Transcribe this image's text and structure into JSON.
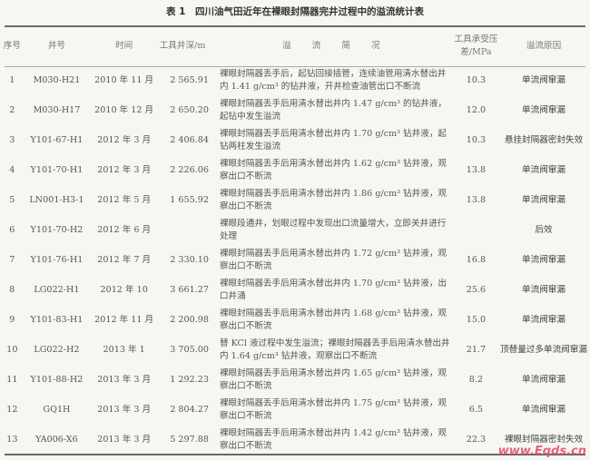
{
  "title": "表 1　四川油气田近年在裸眼封隔器完井过程中的溢流统计表",
  "headers": [
    "序号",
    "井号",
    "时间",
    "工具井深/m",
    "溢 流 简 况",
    "工具承受压差/MPa",
    "溢流原因"
  ],
  "rows": [
    {
      "no": "1",
      "well": "M030-H21",
      "time": "2010 年 11 月",
      "depth": "2 565.91",
      "desc": "裸眼封隔器丢手后，起钻回接插管，连续油管用清水替出井内 1.41 g/cm³ 的钻井液，开井检查油管出口不断流",
      "pressure": "10.3",
      "cause": "单流阀窜漏"
    },
    {
      "no": "2",
      "well": "M030-H17",
      "time": "2010 年 12 月",
      "depth": "2 650.20",
      "desc": "裸眼封隔器丢手后用清水替出井内 1.47 g/cm³ 的钻井液，起钻中发生溢流",
      "pressure": "12.0",
      "cause": "单流阀窜漏"
    },
    {
      "no": "3",
      "well": "Y101-67-H1",
      "time": "2012 年 3 月",
      "depth": "2 406.84",
      "desc": "裸眼封隔器丢手后用清水替出井内 1.70 g/cm³ 钻井液，起钻两柱发生溢流",
      "pressure": "10.3",
      "cause": "悬挂封隔器密封失效"
    },
    {
      "no": "4",
      "well": "Y101-70-H1",
      "time": "2012 年 3 月",
      "depth": "2 226.06",
      "desc": "裸眼封隔器丢手后用清水替出井内 1.62 g/cm³ 钻井液，观察出口不断流",
      "pressure": "13.8",
      "cause": "单流阀窜漏"
    },
    {
      "no": "5",
      "well": "LN001-H3-1",
      "time": "2012 年 5 月",
      "depth": "1 655.92",
      "desc": "裸眼封隔器丢手后用清水替出井内 1.86 g/cm³ 钻井液，观察出口不断流",
      "pressure": "13.8",
      "cause": "单流阀窜漏"
    },
    {
      "no": "6",
      "well": "Y101-70-H2",
      "time": "2012 年 6 月",
      "depth": "",
      "desc": "裸眼段通井，划眼过程中发现出口流量增大，立即关井进行处理",
      "pressure": "",
      "cause": "后效"
    },
    {
      "no": "7",
      "well": "Y101-76-H1",
      "time": "2012 年 7 月",
      "depth": "2 330.10",
      "desc": "裸眼封隔器丢手后用清水替出井内 1.72 g/cm³ 钻井液，观察出口不断流",
      "pressure": "16.8",
      "cause": "单流阀窜漏"
    },
    {
      "no": "8",
      "well": "LG022-H1",
      "time": "2012 年 10",
      "depth": "3 661.27",
      "desc": "裸眼封隔器丢手后用清水替出井内 1.70 g/cm³ 钻井液，出口井涌",
      "pressure": "25.6",
      "cause": "单流阀窜漏"
    },
    {
      "no": "9",
      "well": "Y101-83-H1",
      "time": "2012 年 11 月",
      "depth": "2 200.98",
      "desc": "裸眼封隔器丢手后用清水替出井内 1.68 g/cm³ 钻井液，观察出口不断流",
      "pressure": "15.0",
      "cause": "单流阀窜漏"
    },
    {
      "no": "10",
      "well": "LG022-H2",
      "time": "2013 年 1",
      "depth": "3 705.00",
      "desc": "替 KCl 液过程中发生溢流；裸眼封隔器丢手后用清水替出井内 1.64 g/cm³ 钻井液，观察出口不断流",
      "pressure": "21.7",
      "cause": "顶替量过多单流阀窜漏"
    },
    {
      "no": "11",
      "well": "Y101-88-H2",
      "time": "2013 年 3 月",
      "depth": "1 292.23",
      "desc": "裸眼封隔器丢手后用清水替出井内 1.65 g/cm³ 钻井液，观察出口不断流",
      "pressure": "8.2",
      "cause": "单流阀窜漏"
    },
    {
      "no": "12",
      "well": "GQ1H",
      "time": "2013 年 3 月",
      "depth": "2 804.27",
      "desc": "裸眼封隔器丢手后用清水替出井内 1.75 g/cm³ 钻井液，观察出口不断流",
      "pressure": "6.5",
      "cause": "单流阀窜漏"
    },
    {
      "no": "13",
      "well": "YA006-X6",
      "time": "2013 年 3 月",
      "depth": "5 297.88",
      "desc": "裸眼封隔器丢手后用清水替出井内 1.42 g/cm³ 钻井液，观察出口不断流",
      "pressure": "22.3",
      "cause": "裸眼封隔器密封失效"
    }
  ],
  "watermark": "www.Eqds.cn"
}
